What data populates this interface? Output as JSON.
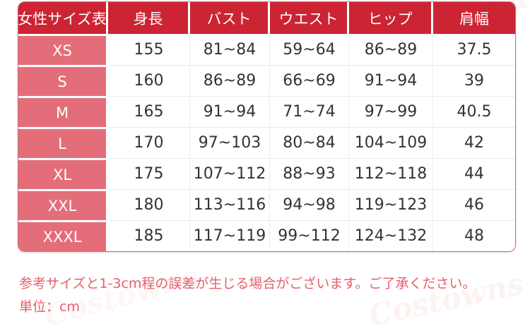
{
  "table": {
    "headers": [
      "女性サイズ表",
      "身長",
      "バスト",
      "ウエスト",
      "ヒップ",
      "肩幅"
    ],
    "rows": [
      {
        "cells": [
          "XS",
          "155",
          "81~84",
          "59~64",
          "86~89",
          "37.5"
        ]
      },
      {
        "cells": [
          "S",
          "160",
          "86~89",
          "66~69",
          "91~94",
          "39"
        ]
      },
      {
        "cells": [
          "M",
          "165",
          "91~94",
          "71~74",
          "97~99",
          "40.5"
        ]
      },
      {
        "cells": [
          "L",
          "170",
          "97~103",
          "80~84",
          "104~109",
          "42"
        ]
      },
      {
        "cells": [
          "XL",
          "175",
          "107~112",
          "88~93",
          "112~118",
          "44"
        ]
      },
      {
        "cells": [
          "XXL",
          "180",
          "113~116",
          "94~98",
          "119~123",
          "46"
        ]
      },
      {
        "cells": [
          "XXXL",
          "185",
          "117~119",
          "99~112",
          "124~132",
          "48"
        ]
      }
    ]
  },
  "notes": {
    "disclaimer": "参考サイズと1-3cm程の誤差が生じる場合がございます。ご了承ください。",
    "unit": "単位：cm"
  },
  "colors": {
    "header_bg": "#cc2433",
    "size_column_bg": "#e36e79",
    "note_text": "#e55f6b",
    "cell_text": "#333333",
    "table_border": "#cf6a75"
  },
  "watermark": {
    "text": "Costowns"
  }
}
